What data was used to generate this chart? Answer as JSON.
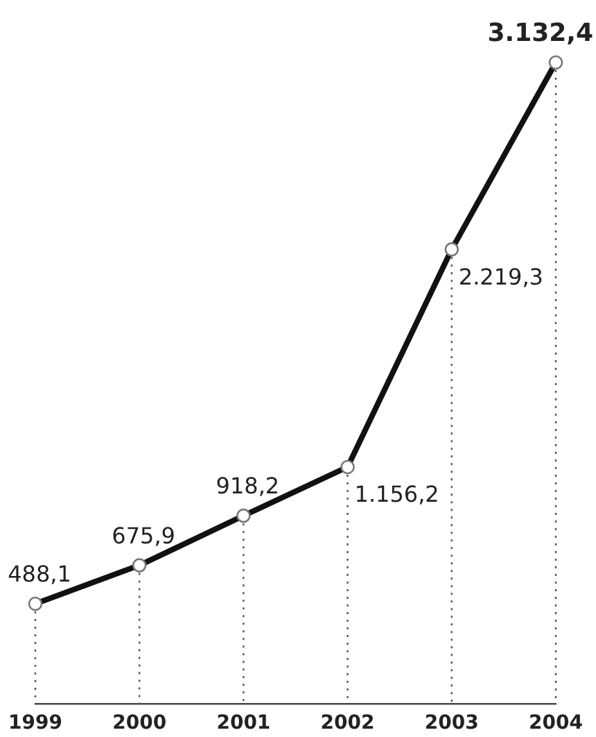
{
  "chart_data": {
    "type": "line",
    "categories": [
      "1999",
      "2000",
      "2001",
      "2002",
      "2003",
      "2004"
    ],
    "series": [
      {
        "color": "#111111",
        "values": [
          488.1,
          675.9,
          918.2,
          1156.2,
          2219.3,
          3132.4
        ],
        "value_labels": [
          "488,1",
          "675,9",
          "918,2",
          "1.156,2",
          "2.219,3",
          "3.132,4"
        ]
      }
    ],
    "tick_labels": "x",
    "marker": "circle",
    "line_style": "solid"
  }
}
